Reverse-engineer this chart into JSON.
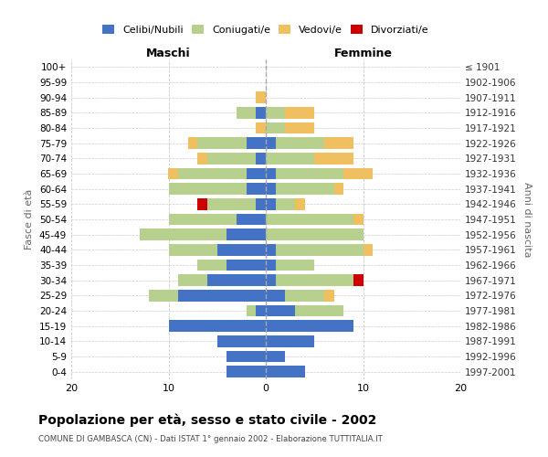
{
  "age_groups": [
    "100+",
    "95-99",
    "90-94",
    "85-89",
    "80-84",
    "75-79",
    "70-74",
    "65-69",
    "60-64",
    "55-59",
    "50-54",
    "45-49",
    "40-44",
    "35-39",
    "30-34",
    "25-29",
    "20-24",
    "15-19",
    "10-14",
    "5-9",
    "0-4"
  ],
  "birth_years": [
    "≤ 1901",
    "1902-1906",
    "1907-1911",
    "1912-1916",
    "1917-1921",
    "1922-1926",
    "1927-1931",
    "1932-1936",
    "1937-1941",
    "1942-1946",
    "1947-1951",
    "1952-1956",
    "1957-1961",
    "1962-1966",
    "1967-1971",
    "1972-1976",
    "1977-1981",
    "1982-1986",
    "1987-1991",
    "1992-1996",
    "1997-2001"
  ],
  "maschi": {
    "celibi": [
      0,
      0,
      0,
      1,
      0,
      2,
      1,
      2,
      2,
      1,
      3,
      4,
      5,
      4,
      6,
      9,
      1,
      10,
      5,
      4,
      4
    ],
    "coniugati": [
      0,
      0,
      0,
      2,
      0,
      5,
      5,
      7,
      8,
      5,
      7,
      9,
      5,
      3,
      3,
      3,
      1,
      0,
      0,
      0,
      0
    ],
    "vedovi": [
      0,
      0,
      1,
      0,
      1,
      1,
      1,
      1,
      0,
      0,
      0,
      0,
      0,
      0,
      0,
      0,
      0,
      0,
      0,
      0,
      0
    ],
    "divorziati": [
      0,
      0,
      0,
      0,
      0,
      0,
      0,
      0,
      0,
      1,
      0,
      0,
      0,
      0,
      0,
      0,
      0,
      0,
      0,
      0,
      0
    ]
  },
  "femmine": {
    "nubili": [
      0,
      0,
      0,
      0,
      0,
      1,
      0,
      1,
      1,
      1,
      0,
      0,
      1,
      1,
      1,
      2,
      3,
      9,
      5,
      2,
      4
    ],
    "coniugate": [
      0,
      0,
      0,
      2,
      2,
      5,
      5,
      7,
      6,
      2,
      9,
      10,
      9,
      4,
      8,
      4,
      5,
      0,
      0,
      0,
      0
    ],
    "vedove": [
      0,
      0,
      0,
      3,
      3,
      3,
      4,
      3,
      1,
      1,
      1,
      0,
      1,
      0,
      0,
      1,
      0,
      0,
      0,
      0,
      0
    ],
    "divorziate": [
      0,
      0,
      0,
      0,
      0,
      0,
      0,
      0,
      0,
      0,
      0,
      0,
      0,
      0,
      1,
      0,
      0,
      0,
      0,
      0,
      0
    ]
  },
  "colors": {
    "celibi_nubili": "#4472c4",
    "coniugati": "#b8d08d",
    "vedovi": "#f0c060",
    "divorziati": "#cc0000"
  },
  "xlim": [
    -20,
    20
  ],
  "xticks": [
    -20,
    -10,
    0,
    10,
    20
  ],
  "xticklabels": [
    "20",
    "10",
    "0",
    "10",
    "20"
  ],
  "title": "Popolazione per età, sesso e stato civile - 2002",
  "subtitle": "COMUNE DI GAMBASCA (CN) - Dati ISTAT 1° gennaio 2002 - Elaborazione TUTTITALIA.IT",
  "ylabel_left": "Fasce di età",
  "ylabel_right": "Anni di nascita",
  "label_maschi": "Maschi",
  "label_femmine": "Femmine",
  "legend_labels": [
    "Celibi/Nubili",
    "Coniugati/e",
    "Vedovi/e",
    "Divorziati/e"
  ],
  "bg_color": "#ffffff",
  "grid_color": "#cccccc"
}
